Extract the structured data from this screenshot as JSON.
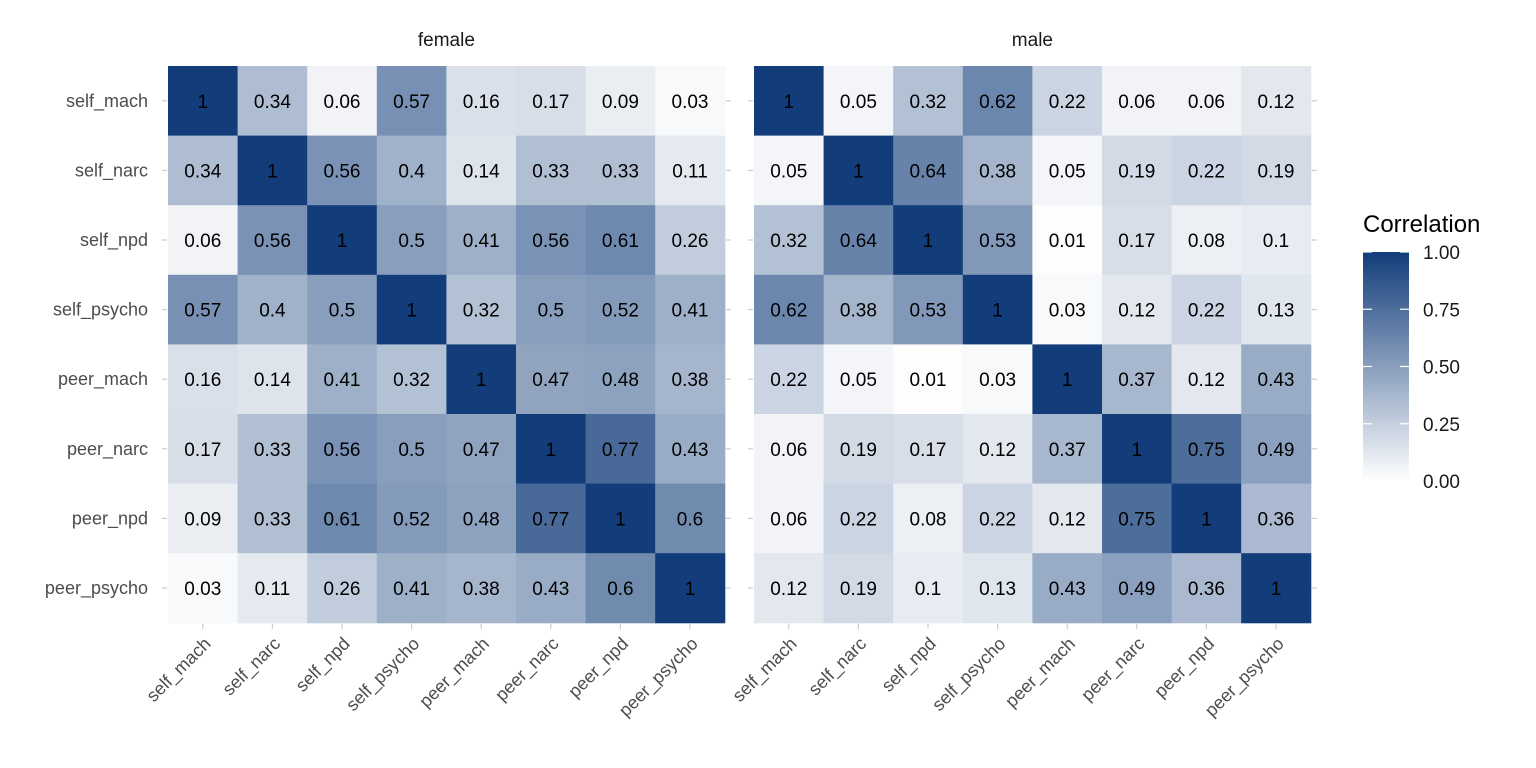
{
  "chart_data": {
    "type": "heatmap",
    "variables": [
      "self_mach",
      "self_narc",
      "self_npd",
      "self_psycho",
      "peer_mach",
      "peer_narc",
      "peer_npd",
      "peer_psycho"
    ],
    "legend": {
      "title": "Correlation",
      "range": [
        0,
        1
      ],
      "ticks": [
        "0.00",
        "0.25",
        "0.50",
        "0.75",
        "1.00"
      ],
      "tick_values": [
        0,
        0.25,
        0.5,
        0.75,
        1
      ],
      "low_color": "#ffffff",
      "high_color": "#123d7a",
      "placement": "right"
    },
    "facets": [
      {
        "title": "female",
        "matrix": [
          [
            1,
            0.34,
            0.06,
            0.57,
            0.16,
            0.17,
            0.09,
            0.03
          ],
          [
            0.34,
            1,
            0.56,
            0.4,
            0.14,
            0.33,
            0.33,
            0.11
          ],
          [
            0.06,
            0.56,
            1,
            0.5,
            0.41,
            0.56,
            0.61,
            0.26
          ],
          [
            0.57,
            0.4,
            0.5,
            1,
            0.32,
            0.5,
            0.52,
            0.41
          ],
          [
            0.16,
            0.14,
            0.41,
            0.32,
            1,
            0.47,
            0.48,
            0.38
          ],
          [
            0.17,
            0.33,
            0.56,
            0.5,
            0.47,
            1,
            0.77,
            0.43
          ],
          [
            0.09,
            0.33,
            0.61,
            0.52,
            0.48,
            0.77,
            1,
            0.6
          ],
          [
            0.03,
            0.11,
            0.26,
            0.41,
            0.38,
            0.43,
            0.6,
            1
          ]
        ]
      },
      {
        "title": "male",
        "matrix": [
          [
            1,
            0.05,
            0.32,
            0.62,
            0.22,
            0.06,
            0.06,
            0.12
          ],
          [
            0.05,
            1,
            0.64,
            0.38,
            0.05,
            0.19,
            0.22,
            0.19
          ],
          [
            0.32,
            0.64,
            1,
            0.53,
            0.01,
            0.17,
            0.08,
            0.1
          ],
          [
            0.62,
            0.38,
            0.53,
            1,
            0.03,
            0.12,
            0.22,
            0.13
          ],
          [
            0.22,
            0.05,
            0.01,
            0.03,
            1,
            0.37,
            0.12,
            0.43
          ],
          [
            0.06,
            0.19,
            0.17,
            0.12,
            0.37,
            1,
            0.75,
            0.49
          ],
          [
            0.06,
            0.22,
            0.08,
            0.22,
            0.12,
            0.75,
            1,
            0.36
          ],
          [
            0.12,
            0.19,
            0.1,
            0.13,
            0.43,
            0.49,
            0.36,
            1
          ]
        ]
      }
    ]
  }
}
